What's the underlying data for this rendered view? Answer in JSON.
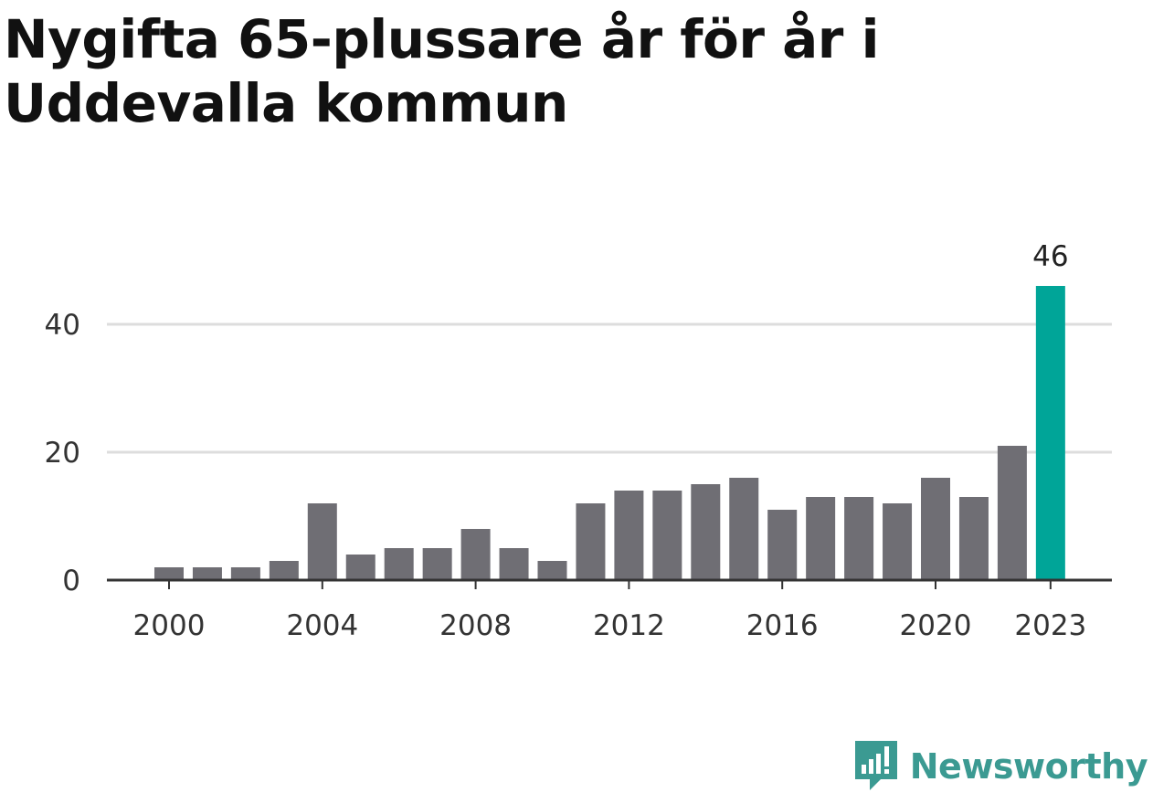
{
  "title": "Nygifta 65-plussare år för år i Uddevalla kommun",
  "logo_text": "Newsworthy",
  "colors": {
    "bar": "#6f6e74",
    "highlight": "#00a598",
    "grid": "#dddddd",
    "axis": "#333333",
    "logo": "#3b9a92"
  },
  "chart_data": {
    "type": "bar",
    "x": [
      2000,
      2001,
      2002,
      2003,
      2004,
      2005,
      2006,
      2007,
      2008,
      2009,
      2010,
      2011,
      2012,
      2013,
      2014,
      2015,
      2016,
      2017,
      2018,
      2019,
      2020,
      2021,
      2022,
      2023
    ],
    "values": [
      2,
      2,
      2,
      3,
      12,
      4,
      5,
      5,
      8,
      5,
      3,
      12,
      14,
      14,
      15,
      16,
      11,
      13,
      13,
      12,
      16,
      13,
      21,
      46
    ],
    "x_tick_labels": [
      "2000",
      "2004",
      "2008",
      "2012",
      "2016",
      "2020",
      "2023"
    ],
    "y_ticks": [
      0,
      20,
      40
    ],
    "ylim": [
      0,
      46
    ],
    "highlight": {
      "x": 2023,
      "label": "46"
    },
    "grid": true
  }
}
